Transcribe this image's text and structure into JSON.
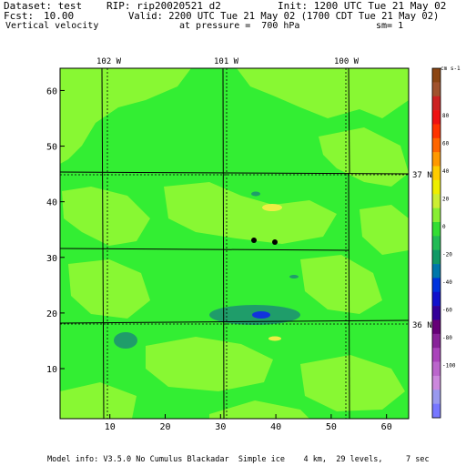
{
  "header": {
    "dataset": "Dataset: test",
    "rip": "RIP: rip20020521 d2",
    "init": "Init: 1200 UTC Tue 21 May 02",
    "fcst_label": "Fcst:",
    "fcst_value": "10.00",
    "valid": "Valid: 2200 UTC Tue 21 May 02 (1700 CDT Tue 21 May 02)",
    "field": "Vertical velocity",
    "pressure": "at pressure =  700 hPa",
    "sm": "sm= 1"
  },
  "plot": {
    "lon_labels": [
      "102 W",
      "101 W",
      "100 W"
    ],
    "lat_labels": [
      "37 N",
      "36 N"
    ],
    "y_ticks": [
      "60",
      "50",
      "40",
      "30",
      "20",
      "10"
    ],
    "x_ticks": [
      "10",
      "20",
      "30",
      "40",
      "50",
      "60"
    ],
    "colors": {
      "background": "#33ee33",
      "light": "#88f833",
      "teal": "#1f9d6a",
      "blue": "#1133dd",
      "yellow": "#eeee44"
    }
  },
  "colorbar": {
    "unit": "cm s-1",
    "labels": [
      "80",
      "60",
      "40",
      "20",
      "0",
      "-20",
      "-40",
      "-60",
      "-80",
      "-100"
    ],
    "colors": [
      "#8b4513",
      "#a0522d",
      "#cc2222",
      "#ee1111",
      "#ff3300",
      "#ff6600",
      "#ff9900",
      "#ffcc00",
      "#eeee00",
      "#ccee33",
      "#88ee33",
      "#33dd33",
      "#22bb55",
      "#119966",
      "#0077aa",
      "#0033dd",
      "#1111cc",
      "#330099",
      "#660077",
      "#882299",
      "#aa44bb",
      "#bb66cc",
      "#cc88dd",
      "#9999ee",
      "#7777ff"
    ]
  },
  "footer": {
    "model_info": "Model info: V3.5.0 No Cumulus Blackadar  Simple ice    4 km,  29 levels,     7 sec"
  }
}
